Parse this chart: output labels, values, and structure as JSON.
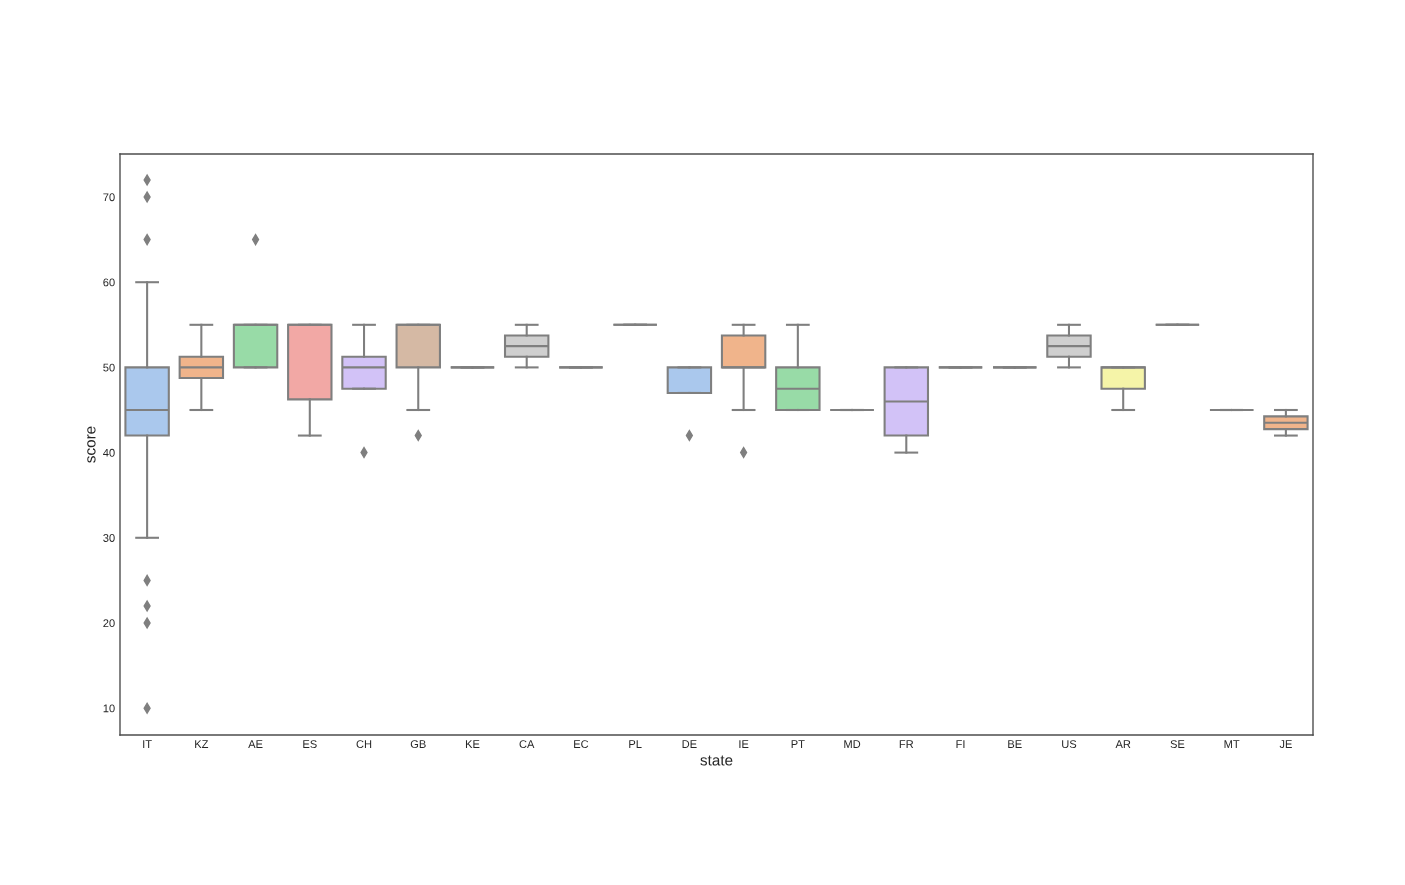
{
  "chart_data": {
    "type": "box",
    "xlabel": "state",
    "ylabel": "score",
    "categories": [
      "IT",
      "KZ",
      "AE",
      "ES",
      "CH",
      "GB",
      "KE",
      "CA",
      "EC",
      "PL",
      "DE",
      "IE",
      "PT",
      "MD",
      "FR",
      "FI",
      "BE",
      "US",
      "AR",
      "SE",
      "MT",
      "JE"
    ],
    "boxes": [
      {
        "low": 30,
        "q1": 42,
        "median": 45,
        "q3": 50,
        "high": 60,
        "outliers": [
          72,
          70,
          65,
          25,
          22,
          20,
          10
        ]
      },
      {
        "low": 45,
        "q1": 48.75,
        "median": 50,
        "q3": 51.25,
        "high": 55
      },
      {
        "low": 50,
        "q1": 50,
        "median": 55,
        "q3": 55,
        "high": 55,
        "outliers": [
          65
        ]
      },
      {
        "low": 42,
        "q1": 46.25,
        "median": 55,
        "q3": 55,
        "high": 55
      },
      {
        "low": 47.5,
        "q1": 47.5,
        "median": 50,
        "q3": 51.25,
        "high": 55,
        "outliers": [
          40
        ]
      },
      {
        "low": 45,
        "q1": 50,
        "median": 55,
        "q3": 55,
        "high": 55,
        "outliers": [
          42
        ]
      },
      {
        "low": 50,
        "q1": 50,
        "median": 50,
        "q3": 50,
        "high": 50
      },
      {
        "low": 50,
        "q1": 51.25,
        "median": 52.5,
        "q3": 53.75,
        "high": 55
      },
      {
        "low": 50,
        "q1": 50,
        "median": 50,
        "q3": 50,
        "high": 50
      },
      {
        "low": 55,
        "q1": 55,
        "median": 55,
        "q3": 55,
        "high": 55
      },
      {
        "low": 47,
        "q1": 47,
        "median": 47,
        "q3": 50,
        "high": 50,
        "outliers": [
          42
        ]
      },
      {
        "low": 45,
        "q1": 50,
        "median": 50,
        "q3": 53.75,
        "high": 55,
        "outliers": [
          40
        ]
      },
      {
        "low": 45,
        "q1": 45,
        "median": 47.5,
        "q3": 50,
        "high": 55
      },
      {
        "low": 45,
        "q1": 45,
        "median": 45,
        "q3": 45,
        "high": 45
      },
      {
        "low": 40,
        "q1": 42,
        "median": 46,
        "q3": 50,
        "high": 50
      },
      {
        "low": 50,
        "q1": 50,
        "median": 50,
        "q3": 50,
        "high": 50
      },
      {
        "low": 50,
        "q1": 50,
        "median": 50,
        "q3": 50,
        "high": 50
      },
      {
        "low": 50,
        "q1": 51.25,
        "median": 52.5,
        "q3": 53.75,
        "high": 55
      },
      {
        "low": 45,
        "q1": 47.5,
        "median": 50,
        "q3": 50,
        "high": 50
      },
      {
        "low": 55,
        "q1": 55,
        "median": 55,
        "q3": 55,
        "high": 55
      },
      {
        "low": 45,
        "q1": 45,
        "median": 45,
        "q3": 45,
        "high": 45
      },
      {
        "low": 42,
        "q1": 42.75,
        "median": 43.5,
        "q3": 44.25,
        "high": 45
      }
    ],
    "colors": [
      "#aac8ed",
      "#f0b48b",
      "#98dba7",
      "#f2a8a5",
      "#d2c2f7",
      "#d5b9a4",
      null,
      "#cfcfcf",
      null,
      null,
      "#aac8ed",
      "#f0b48b",
      "#98dba7",
      null,
      "#d2c2f7",
      null,
      null,
      "#cfcfcf",
      "#f5f4a8",
      null,
      null,
      "#f0b48b"
    ],
    "ylim": [
      6.85,
      75.05
    ],
    "yticks": [
      10,
      20,
      30,
      40,
      50,
      60,
      70
    ],
    "marker": "diamond",
    "grid": false
  }
}
